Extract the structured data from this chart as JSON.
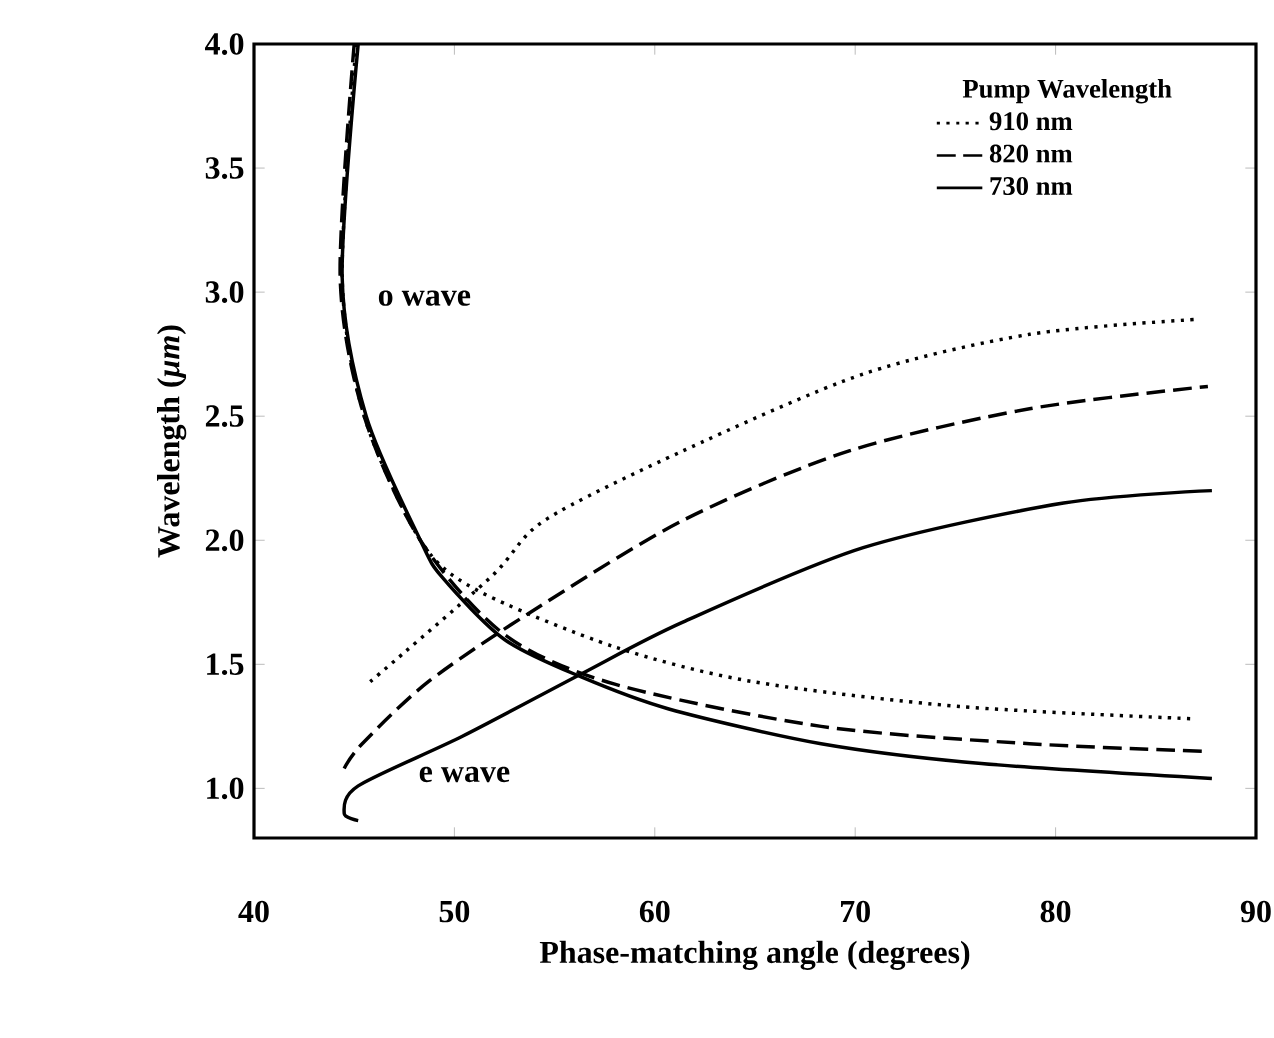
{
  "chart_data": {
    "type": "line",
    "xlabel": "Phase-matching angle (degrees)",
    "ylabel": "Wavelength (*μm*)",
    "legend_title": "Pump Wavelength",
    "legend": "top right",
    "grid": false,
    "marker": "none",
    "xlim": [
      40,
      90
    ],
    "ylim": [
      0.8,
      4.0
    ],
    "xticks": [
      40,
      50,
      60,
      70,
      80,
      90
    ],
    "yticks": [
      {
        "value": 1.0,
        "label": "1.0"
      },
      {
        "value": 1.5,
        "label": "1.5"
      },
      {
        "value": 2.0,
        "label": "2.0"
      },
      {
        "value": 2.5,
        "label": "2.5"
      },
      {
        "value": 3.0,
        "label": "3.0"
      },
      {
        "value": 3.5,
        "label": "3.5"
      },
      {
        "value": 4.0,
        "label": "4.0"
      }
    ],
    "annotations": [
      "o wave",
      "e wave"
    ],
    "series": [
      {
        "name": "910 nm",
        "color": "#000000",
        "line_style": "dotted",
        "x": [
          45.8,
          51.8,
          54.5,
          61.4,
          70.4,
          78.7,
          87.0
        ],
        "values": [
          1.43,
          1.85,
          2.08,
          2.36,
          2.67,
          2.83,
          2.89
        ]
      },
      {
        "name": "820 nm",
        "color": "#000000",
        "line_style": "dashed",
        "x": [
          44.5,
          45.4,
          48.7,
          53.8,
          61.4,
          69.7,
          78.7,
          87.6
        ],
        "values": [
          1.08,
          1.18,
          1.43,
          1.71,
          2.08,
          2.36,
          2.53,
          2.62
        ]
      },
      {
        "name": "730 nm",
        "color": "#000000",
        "line_style": "solid",
        "x": [
          45.2,
          44.5,
          45.2,
          50.4,
          56.3,
          61.4,
          70.4,
          80.4,
          87.8
        ],
        "values": [
          0.87,
          0.9,
          1.01,
          1.21,
          1.46,
          1.67,
          1.97,
          2.15,
          2.2
        ]
      },
      {
        "color": "#000000",
        "line_style": "dotted",
        "x": [
          45.1,
          44.4,
          45.5,
          48.3,
          51.1,
          58.0,
          64.9,
          75.2,
          87.0
        ],
        "values": [
          4.0,
          3.06,
          2.5,
          2.0,
          1.8,
          1.57,
          1.43,
          1.33,
          1.28
        ]
      },
      {
        "color": "#000000",
        "line_style": "dashed",
        "x": [
          45.0,
          44.3,
          45.5,
          48.3,
          52.5,
          58.0,
          68.3,
          78.7,
          87.3
        ],
        "values": [
          4.0,
          3.06,
          2.5,
          2.0,
          1.62,
          1.42,
          1.25,
          1.18,
          1.15
        ]
      },
      {
        "color": "#000000",
        "line_style": "solid",
        "x": [
          45.2,
          44.4,
          45.6,
          48.3,
          49.4,
          52.5,
          56.3,
          60.7,
          68.3,
          76.3,
          87.8
        ],
        "values": [
          4.0,
          3.06,
          2.5,
          2.0,
          1.85,
          1.6,
          1.45,
          1.32,
          1.18,
          1.1,
          1.04
        ]
      }
    ]
  }
}
